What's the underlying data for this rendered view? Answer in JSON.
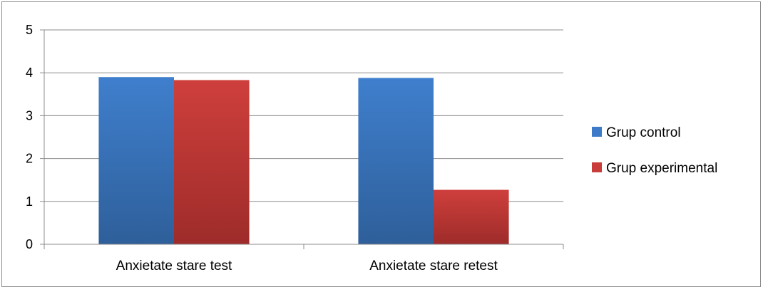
{
  "chart_data": {
    "type": "bar",
    "categories": [
      "Anxietate stare test",
      "Anxietate stare retest"
    ],
    "series": [
      {
        "name": "Grup control",
        "values": [
          3.9,
          3.88
        ],
        "color": "#3D7BC8"
      },
      {
        "name": "Grup experimental",
        "values": [
          3.83,
          1.27
        ],
        "color": "#C83C3A"
      }
    ],
    "yticks": [
      "0",
      "1",
      "2",
      "3",
      "4",
      "5"
    ],
    "ylim": [
      0,
      5
    ],
    "grid": true,
    "legend": "right"
  }
}
